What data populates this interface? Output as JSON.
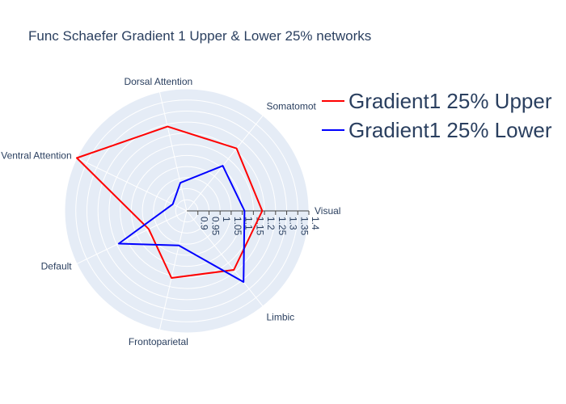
{
  "chart_data": {
    "type": "radar",
    "title": "Func Schaefer Gradient 1 Upper & Lower 25% networks",
    "categories": [
      "Visual",
      "Somatomot",
      "Dorsal Attention",
      "Ventral Attention",
      "Default",
      "Frontoparietal",
      "Limbic"
    ],
    "radial_range": [
      0.85,
      1.4
    ],
    "radial_ticks": [
      0.9,
      0.95,
      1,
      1.05,
      1.1,
      1.15,
      1.2,
      1.25,
      1.3,
      1.35,
      1.4
    ],
    "radial_tick_labels": [
      "0.9",
      "0.95",
      "1",
      "1.05",
      "1.1",
      "1.15",
      "1.2",
      "1.25",
      "1.3",
      "1.35",
      "1.4"
    ],
    "series": [
      {
        "name": "Gradient1 25% Upper",
        "color": "#ff0000",
        "values": [
          1.19,
          1.21,
          1.24,
          1.4,
          1.04,
          1.16,
          1.19
        ]
      },
      {
        "name": "Gradient1 25% Lower",
        "color": "#0000ff",
        "values": [
          1.11,
          1.11,
          0.98,
          0.92,
          1.19,
          1.01,
          1.26
        ]
      }
    ],
    "legend_position": "top-right",
    "grid": true,
    "colors": {
      "background": "#e5ecf6",
      "grid": "#ffffff",
      "text": "#2a3f5f"
    }
  }
}
